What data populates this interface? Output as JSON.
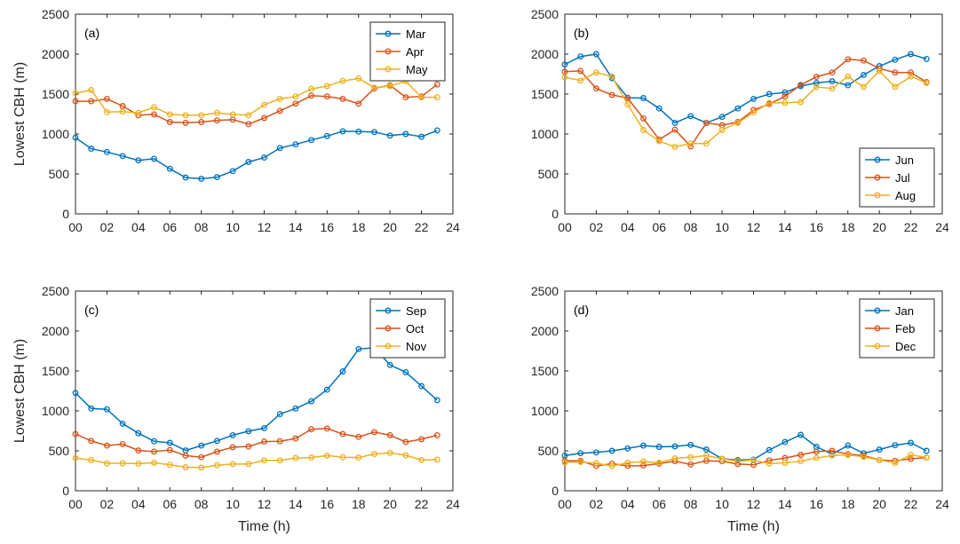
{
  "colors": {
    "series1": "#0072BD",
    "series2": "#D95319",
    "series3": "#EDB120",
    "axis": "#262626"
  },
  "chart_data": [
    {
      "type": "line",
      "panel_label": "(a)",
      "ylabel": "Lowest CBH (m)",
      "xlabel": "",
      "xlim": [
        0,
        24
      ],
      "ylim": [
        0,
        2500
      ],
      "xticks": [
        "00",
        "02",
        "04",
        "06",
        "08",
        "10",
        "12",
        "14",
        "16",
        "18",
        "20",
        "22",
        "24"
      ],
      "yticks": [
        "0",
        "500",
        "1000",
        "1500",
        "2000",
        "2500"
      ],
      "legend_position": "top-right",
      "x": [
        0,
        1,
        2,
        3,
        4,
        5,
        6,
        7,
        8,
        9,
        10,
        11,
        12,
        13,
        14,
        15,
        16,
        17,
        18,
        19,
        20,
        21,
        22,
        23
      ],
      "series": [
        {
          "name": "Mar",
          "values": [
            955,
            815,
            775,
            725,
            670,
            690,
            565,
            455,
            440,
            460,
            535,
            650,
            705,
            825,
            870,
            925,
            975,
            1035,
            1030,
            1025,
            980,
            1000,
            965,
            1045
          ]
        },
        {
          "name": "Apr",
          "values": [
            1410,
            1410,
            1440,
            1350,
            1235,
            1245,
            1150,
            1140,
            1150,
            1170,
            1180,
            1125,
            1200,
            1290,
            1380,
            1480,
            1470,
            1440,
            1380,
            1570,
            1610,
            1460,
            1470,
            1620
          ]
        },
        {
          "name": "May",
          "values": [
            1510,
            1550,
            1275,
            1280,
            1265,
            1335,
            1245,
            1235,
            1235,
            1265,
            1245,
            1235,
            1365,
            1440,
            1470,
            1565,
            1600,
            1665,
            1695,
            1580,
            1600,
            1660,
            1460,
            1460
          ]
        }
      ]
    },
    {
      "type": "line",
      "panel_label": "(b)",
      "ylabel": "",
      "xlabel": "",
      "xlim": [
        0,
        24
      ],
      "ylim": [
        0,
        2500
      ],
      "xticks": [
        "00",
        "02",
        "04",
        "06",
        "08",
        "10",
        "12",
        "14",
        "16",
        "18",
        "20",
        "22",
        "24"
      ],
      "yticks": [
        "0",
        "500",
        "1000",
        "1500",
        "2000",
        "2500"
      ],
      "legend_position": "bottom-right",
      "x": [
        0,
        1,
        2,
        3,
        4,
        5,
        6,
        7,
        8,
        9,
        10,
        11,
        12,
        13,
        14,
        15,
        16,
        17,
        18,
        19,
        20,
        21,
        22,
        23
      ],
      "series": [
        {
          "name": "Jun",
          "values": [
            1870,
            1970,
            2000,
            1700,
            1455,
            1450,
            1320,
            1140,
            1225,
            1140,
            1215,
            1320,
            1440,
            1500,
            1520,
            1600,
            1640,
            1660,
            1610,
            1740,
            1850,
            1930,
            2000,
            1940
          ]
        },
        {
          "name": "Jul",
          "values": [
            1780,
            1790,
            1570,
            1490,
            1450,
            1195,
            930,
            1055,
            845,
            1140,
            1110,
            1150,
            1300,
            1375,
            1470,
            1615,
            1715,
            1770,
            1935,
            1920,
            1820,
            1770,
            1770,
            1650
          ]
        },
        {
          "name": "Aug",
          "values": [
            1710,
            1670,
            1770,
            1720,
            1370,
            1050,
            910,
            840,
            880,
            880,
            1050,
            1140,
            1270,
            1390,
            1390,
            1400,
            1590,
            1570,
            1720,
            1590,
            1790,
            1590,
            1720,
            1640
          ]
        }
      ]
    },
    {
      "type": "line",
      "panel_label": "(c)",
      "ylabel": "Lowest CBH (m)",
      "xlabel": "Time (h)",
      "xlim": [
        0,
        24
      ],
      "ylim": [
        0,
        2500
      ],
      "xticks": [
        "00",
        "02",
        "04",
        "06",
        "08",
        "10",
        "12",
        "14",
        "16",
        "18",
        "20",
        "22",
        "24"
      ],
      "yticks": [
        "0",
        "500",
        "1000",
        "1500",
        "2000",
        "2500"
      ],
      "legend_position": "top-right",
      "x": [
        0,
        1,
        2,
        3,
        4,
        5,
        6,
        7,
        8,
        9,
        10,
        11,
        12,
        13,
        14,
        15,
        16,
        17,
        18,
        19,
        20,
        21,
        22,
        23
      ],
      "series": [
        {
          "name": "Sep",
          "values": [
            1225,
            1030,
            1020,
            840,
            720,
            620,
            600,
            505,
            565,
            625,
            695,
            745,
            785,
            960,
            1030,
            1120,
            1265,
            1495,
            1775,
            1790,
            1575,
            1485,
            1310,
            1135
          ]
        },
        {
          "name": "Oct",
          "values": [
            710,
            625,
            565,
            585,
            505,
            490,
            510,
            440,
            420,
            490,
            545,
            555,
            615,
            620,
            655,
            770,
            780,
            710,
            675,
            735,
            695,
            610,
            645,
            695
          ]
        },
        {
          "name": "Nov",
          "values": [
            410,
            385,
            345,
            345,
            340,
            350,
            325,
            295,
            290,
            320,
            335,
            335,
            380,
            380,
            410,
            415,
            440,
            420,
            415,
            460,
            475,
            445,
            385,
            390
          ]
        }
      ]
    },
    {
      "type": "line",
      "panel_label": "(d)",
      "ylabel": "",
      "xlabel": "Time (h)",
      "xlim": [
        0,
        24
      ],
      "ylim": [
        0,
        2500
      ],
      "xticks": [
        "00",
        "02",
        "04",
        "06",
        "08",
        "10",
        "12",
        "14",
        "16",
        "18",
        "20",
        "22",
        "24"
      ],
      "yticks": [
        "0",
        "500",
        "1000",
        "1500",
        "2000",
        "2500"
      ],
      "legend_position": "top-right",
      "x": [
        0,
        1,
        2,
        3,
        4,
        5,
        6,
        7,
        8,
        9,
        10,
        11,
        12,
        13,
        14,
        15,
        16,
        17,
        18,
        19,
        20,
        21,
        22,
        23
      ],
      "series": [
        {
          "name": "Jan",
          "values": [
            440,
            470,
            480,
            500,
            530,
            565,
            550,
            555,
            575,
            515,
            400,
            385,
            390,
            510,
            610,
            700,
            550,
            460,
            565,
            470,
            515,
            570,
            600,
            500
          ]
        },
        {
          "name": "Feb",
          "values": [
            375,
            375,
            310,
            340,
            310,
            315,
            340,
            370,
            330,
            375,
            370,
            335,
            325,
            380,
            410,
            450,
            490,
            500,
            460,
            440,
            385,
            375,
            400,
            415
          ]
        },
        {
          "name": "Dec",
          "values": [
            355,
            360,
            345,
            310,
            350,
            365,
            350,
            405,
            420,
            440,
            400,
            370,
            385,
            340,
            350,
            370,
            410,
            440,
            450,
            425,
            385,
            350,
            450,
            415
          ]
        }
      ]
    }
  ]
}
